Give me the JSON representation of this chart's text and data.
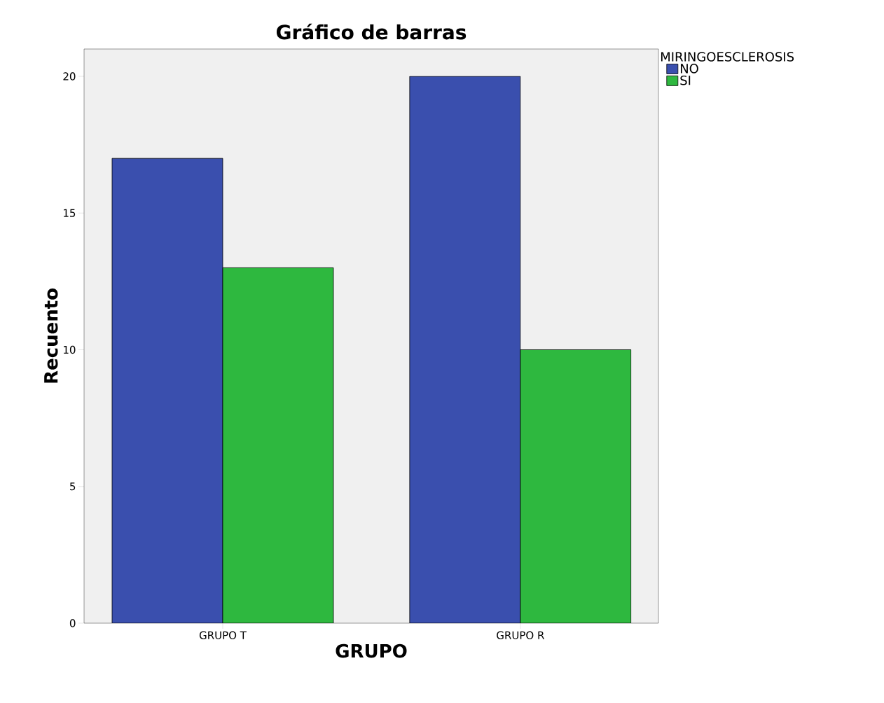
{
  "chart_data": {
    "type": "bar",
    "title": "Gráfico de barras",
    "xlabel": "GRUPO",
    "ylabel": "Recuento",
    "legend_title": "MIRINGOESCLEROSIS",
    "categories": [
      "GRUPO T",
      "GRUPO R"
    ],
    "series": [
      {
        "name": "NO",
        "color": "#3a4fae",
        "values": [
          17,
          20
        ]
      },
      {
        "name": "SI",
        "color": "#2eb83f",
        "values": [
          13,
          10
        ]
      }
    ],
    "ylim": [
      0,
      21
    ],
    "yticks": [
      0,
      5,
      10,
      15,
      20
    ],
    "legend": "top right"
  }
}
